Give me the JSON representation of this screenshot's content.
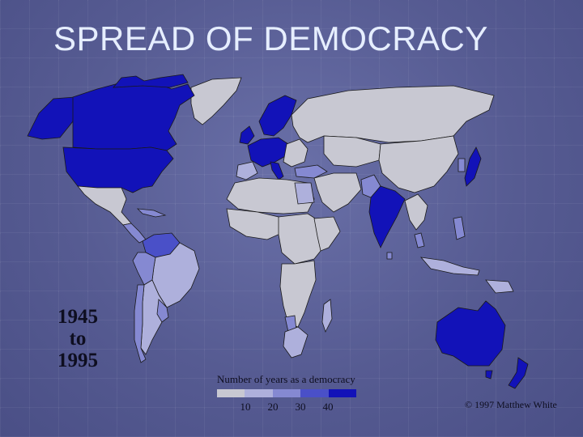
{
  "title": "SPREAD OF DEMOCRACY",
  "period": {
    "line1": "1945",
    "line2": "to",
    "line3": "1995"
  },
  "legend": {
    "title": "Number of years as a democracy",
    "ticks": [
      "10",
      "20",
      "30",
      "40"
    ],
    "colors": [
      "#c8c8d2",
      "#aeb0dc",
      "#8589d2",
      "#4a50c8",
      "#1212b8"
    ]
  },
  "copyright": "© 1997 Matthew White",
  "colors": {
    "background": "#5a5f95",
    "title_text": "#e6eeff",
    "non_democracy": "#c8c8d2",
    "years_10_20": "#aeb0dc",
    "years_20_30": "#8589d2",
    "years_30_40": "#4a50c8",
    "years_40_plus": "#1212b8"
  }
}
